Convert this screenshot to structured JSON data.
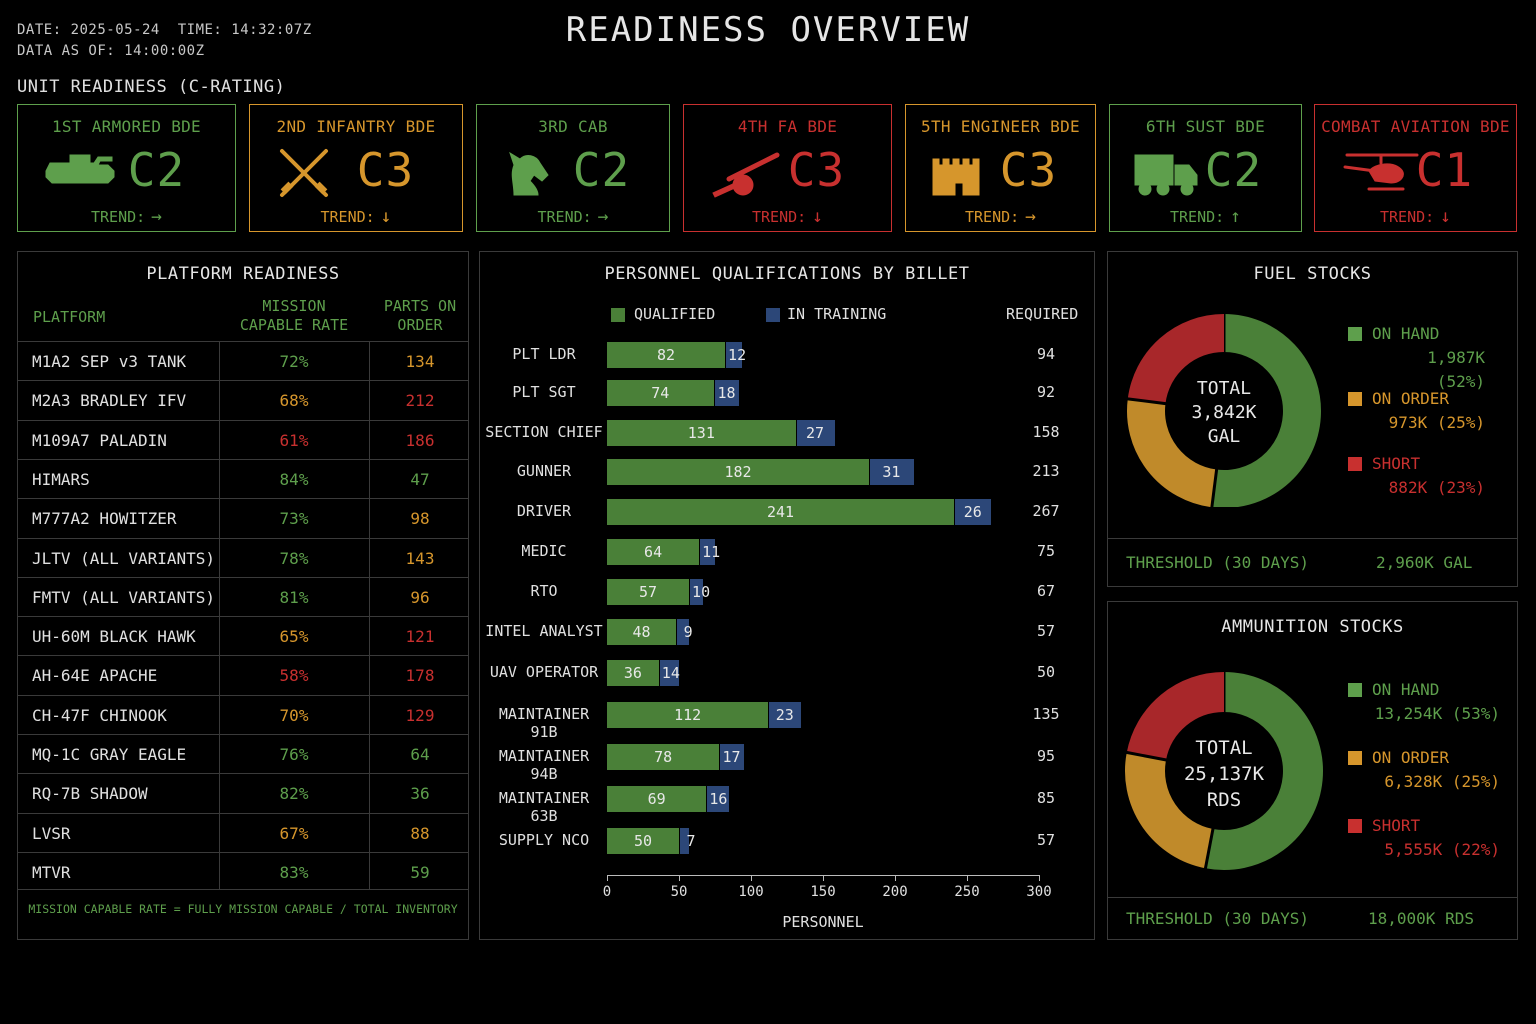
{
  "header": {
    "date_line": "DATE: 2025-05-24  TIME: 14:32:07Z",
    "data_as_of": "DATA AS OF: 14:00:00Z",
    "title": "READINESS OVERVIEW"
  },
  "colors": {
    "green": "#5e9f4c",
    "amber": "#d6962c",
    "red": "#c8302f",
    "navy": "#2c4778",
    "bar_green": "#4a8038"
  },
  "unit_readiness": {
    "label": "UNIT READINESS (C-RATING)",
    "trend_label": "TREND:",
    "units": [
      {
        "name": "1ST ARMORED BDE",
        "rating": "C2",
        "trend": "→",
        "status": "green",
        "icon": "tank-icon"
      },
      {
        "name": "2ND INFANTRY BDE",
        "rating": "C3",
        "trend": "↓",
        "status": "amber",
        "icon": "crossed-rifles-icon"
      },
      {
        "name": "3RD CAB",
        "rating": "C2",
        "trend": "→",
        "status": "green",
        "icon": "horse-head-icon"
      },
      {
        "name": "4TH FA BDE",
        "rating": "C3",
        "trend": "↓",
        "status": "red",
        "icon": "cannon-icon"
      },
      {
        "name": "5TH ENGINEER BDE",
        "rating": "C3",
        "trend": "→",
        "status": "amber",
        "icon": "castle-icon"
      },
      {
        "name": "6TH SUST BDE",
        "rating": "C2",
        "trend": "↑",
        "status": "green",
        "icon": "truck-icon"
      },
      {
        "name": "COMBAT AVIATION BDE",
        "rating": "C1",
        "trend": "↓",
        "status": "red",
        "icon": "helicopter-icon"
      }
    ]
  },
  "platform_readiness": {
    "title": "PLATFORM READINESS",
    "col_platform": "PLATFORM",
    "col_mc_line1": "MISSION",
    "col_mc_line2": "CAPABLE RATE",
    "col_parts_line1": "PARTS ON",
    "col_parts_line2": "ORDER",
    "footnote": "MISSION CAPABLE RATE = FULLY MISSION CAPABLE / TOTAL INVENTORY",
    "rows": [
      {
        "platform": "M1A2 SEP v3 TANK",
        "mc": "72%",
        "mc_status": "green",
        "parts": "134",
        "parts_status": "amber"
      },
      {
        "platform": "M2A3 BRADLEY IFV",
        "mc": "68%",
        "mc_status": "amber",
        "parts": "212",
        "parts_status": "red"
      },
      {
        "platform": "M109A7 PALADIN",
        "mc": "61%",
        "mc_status": "red",
        "parts": "186",
        "parts_status": "red"
      },
      {
        "platform": "HIMARS",
        "mc": "84%",
        "mc_status": "green",
        "parts": "47",
        "parts_status": "green"
      },
      {
        "platform": "M777A2 HOWITZER",
        "mc": "73%",
        "mc_status": "green",
        "parts": "98",
        "parts_status": "amber"
      },
      {
        "platform": "JLTV (ALL VARIANTS)",
        "mc": "78%",
        "mc_status": "green",
        "parts": "143",
        "parts_status": "amber"
      },
      {
        "platform": "FMTV (ALL VARIANTS)",
        "mc": "81%",
        "mc_status": "green",
        "parts": "96",
        "parts_status": "amber"
      },
      {
        "platform": "UH-60M BLACK HAWK",
        "mc": "65%",
        "mc_status": "amber",
        "parts": "121",
        "parts_status": "red"
      },
      {
        "platform": "AH-64E APACHE",
        "mc": "58%",
        "mc_status": "red",
        "parts": "178",
        "parts_status": "red"
      },
      {
        "platform": "CH-47F CHINOOK",
        "mc": "70%",
        "mc_status": "amber",
        "parts": "129",
        "parts_status": "red"
      },
      {
        "platform": "MQ-1C GRAY EAGLE",
        "mc": "76%",
        "mc_status": "green",
        "parts": "64",
        "parts_status": "green"
      },
      {
        "platform": "RQ-7B SHADOW",
        "mc": "82%",
        "mc_status": "green",
        "parts": "36",
        "parts_status": "green"
      },
      {
        "platform": "LVSR",
        "mc": "67%",
        "mc_status": "amber",
        "parts": "88",
        "parts_status": "amber"
      },
      {
        "platform": "MTVR",
        "mc": "83%",
        "mc_status": "green",
        "parts": "59",
        "parts_status": "green"
      }
    ]
  },
  "personnel": {
    "title": "PERSONNEL QUALIFICATIONS BY BILLET",
    "legend_qualified": "QUALIFIED",
    "legend_training": "IN TRAINING",
    "col_required": "REQUIRED",
    "xlabel": "PERSONNEL",
    "ticks": [
      "0",
      "50",
      "100",
      "150",
      "200",
      "250",
      "300"
    ]
  },
  "chart_data": {
    "type": "bar",
    "orientation": "horizontal",
    "stacked": true,
    "title": "PERSONNEL QUALIFICATIONS BY BILLET",
    "xlabel": "PERSONNEL",
    "xlim": [
      0,
      300
    ],
    "categories": [
      "PLT LDR",
      "PLT SGT",
      "SECTION CHIEF",
      "GUNNER",
      "DRIVER",
      "MEDIC",
      "RTO",
      "INTEL ANALYST",
      "UAV OPERATOR",
      "MAINTAINER 91B",
      "MAINTAINER 94B",
      "MAINTAINER 63B",
      "SUPPLY NCO"
    ],
    "series": [
      {
        "name": "QUALIFIED",
        "values": [
          82,
          74,
          131,
          182,
          241,
          64,
          57,
          48,
          36,
          112,
          78,
          69,
          50
        ]
      },
      {
        "name": "IN TRAINING",
        "values": [
          12,
          18,
          27,
          31,
          26,
          11,
          10,
          9,
          14,
          23,
          17,
          16,
          7
        ]
      }
    ],
    "required": [
      94,
      92,
      158,
      213,
      267,
      75,
      67,
      57,
      50,
      135,
      95,
      85,
      57
    ]
  },
  "fuel": {
    "title": "FUEL STOCKS",
    "total_line1": "TOTAL",
    "total_line2": "3,842K",
    "total_line3": "GAL",
    "legend": [
      {
        "label": "ON HAND",
        "value": "1,987K (52%)",
        "pct": 52,
        "status": "green"
      },
      {
        "label": "ON ORDER",
        "value": "973K (25%)",
        "pct": 25,
        "status": "amber"
      },
      {
        "label": "SHORT",
        "value": "882K (23%)",
        "pct": 23,
        "status": "red"
      }
    ],
    "threshold_label": "THRESHOLD (30 DAYS)",
    "threshold_value": "2,960K GAL"
  },
  "ammo": {
    "title": "AMMUNITION STOCKS",
    "total_line1": "TOTAL",
    "total_line2": "25,137K",
    "total_line3": "RDS",
    "legend": [
      {
        "label": "ON HAND",
        "value": "13,254K (53%)",
        "pct": 53,
        "status": "green"
      },
      {
        "label": "ON ORDER",
        "value": "6,328K (25%)",
        "pct": 25,
        "status": "amber"
      },
      {
        "label": "SHORT",
        "value": "5,555K (22%)",
        "pct": 22,
        "status": "red"
      }
    ],
    "threshold_label": "THRESHOLD (30 DAYS)",
    "threshold_value": "18,000K RDS"
  }
}
